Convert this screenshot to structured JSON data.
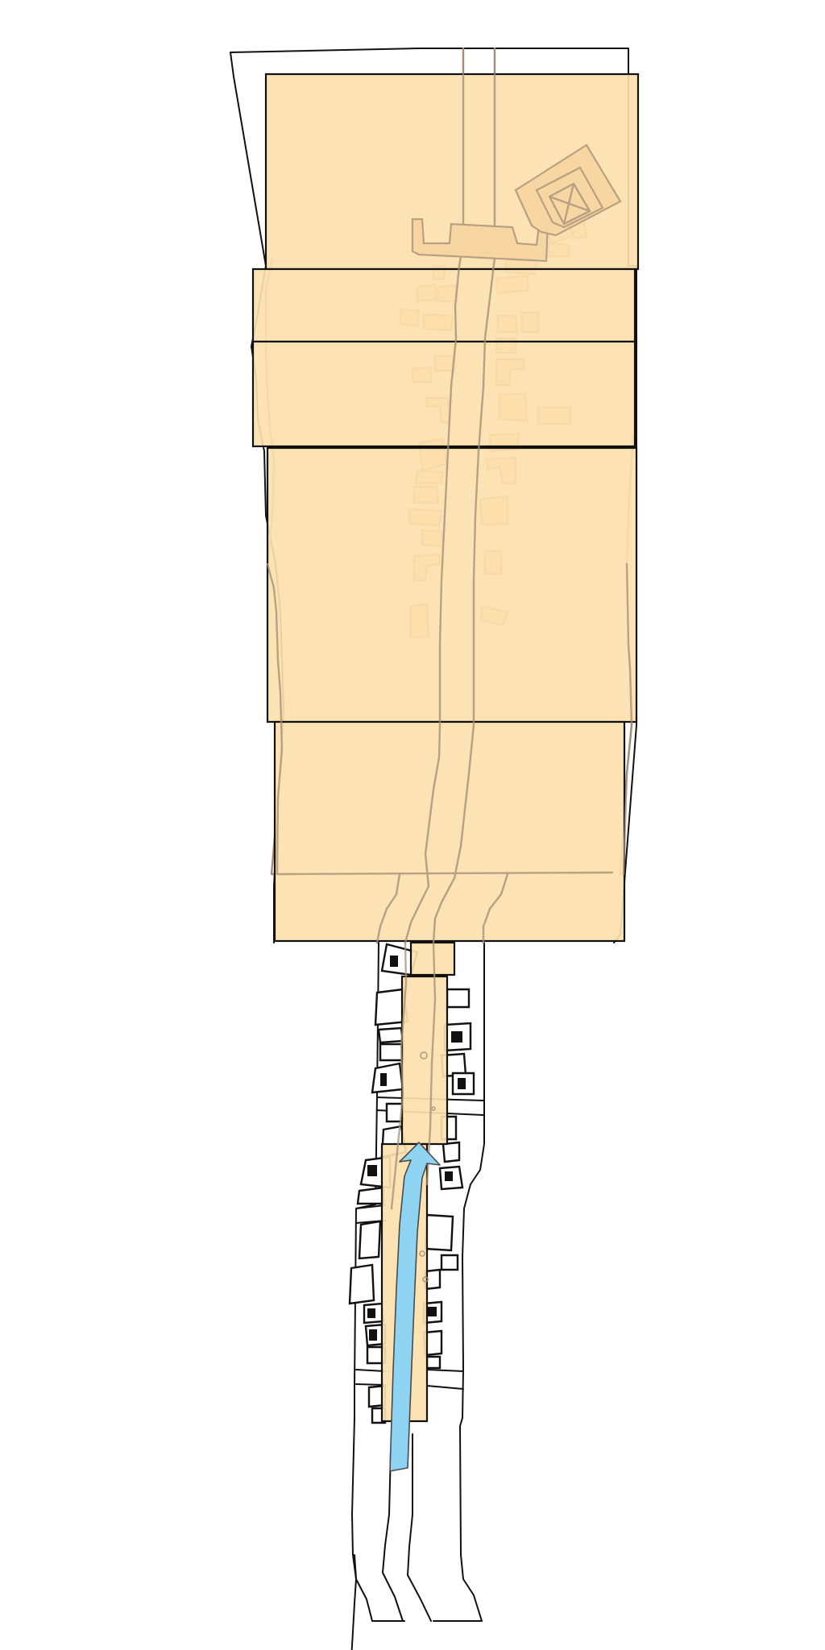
{
  "diagram": {
    "zone_color": "#fde0ad",
    "zone_stroke": "#111111",
    "ghost_stroke": "#a38f78",
    "outline_color": "#111111",
    "arrow_color": "#8fd3f3",
    "arrow_stroke": "#4a4a4a",
    "arrow_direction": "up",
    "zones_count": 8
  }
}
